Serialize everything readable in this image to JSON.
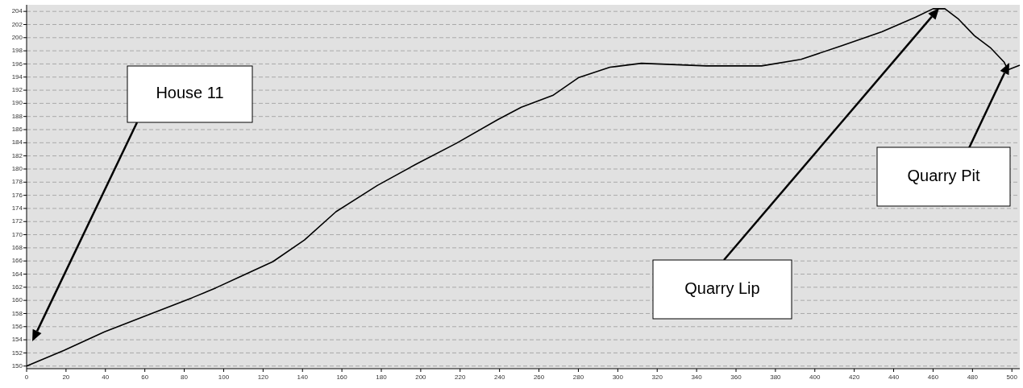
{
  "chart_data": {
    "type": "line",
    "x": [
      0,
      19,
      39.5,
      60,
      84,
      96,
      109,
      125,
      141,
      157,
      178,
      198,
      218,
      239,
      251,
      267,
      280,
      296,
      312,
      345,
      373,
      393,
      414,
      434,
      451,
      460,
      466,
      473,
      481,
      489,
      496,
      498,
      504
    ],
    "series": [
      {
        "color": "#000000",
        "values": [
          150,
          152.4,
          155.2,
          157.6,
          160.4,
          161.9,
          163.7,
          165.9,
          169.2,
          173.5,
          177.5,
          180.8,
          183.9,
          187.5,
          189.4,
          191.2,
          193.9,
          195.5,
          196.1,
          195.7,
          195.7,
          196.7,
          198.8,
          200.9,
          203.1,
          204.4,
          204.4,
          202.8,
          200.3,
          198.5,
          196.3,
          195.1,
          195.8
        ]
      }
    ],
    "xlim": [
      0,
      504
    ],
    "ylim": [
      149.6,
      205
    ],
    "xticks": [
      0,
      20,
      40,
      60,
      80,
      100,
      120,
      140,
      160,
      180,
      200,
      220,
      240,
      260,
      280,
      300,
      320,
      340,
      360,
      380,
      400,
      420,
      440,
      460,
      480,
      500
    ],
    "yticks": [
      150,
      152,
      154,
      156,
      158,
      160,
      162,
      164,
      166,
      168,
      170,
      172,
      174,
      176,
      178,
      180,
      182,
      184,
      186,
      188,
      190,
      192,
      194,
      196,
      198,
      200,
      202,
      204
    ],
    "grid": "y",
    "marker": "none",
    "line_style": "solid",
    "annotations": [
      "House 11",
      "Quarry Lip",
      "Quarry Pit"
    ]
  }
}
